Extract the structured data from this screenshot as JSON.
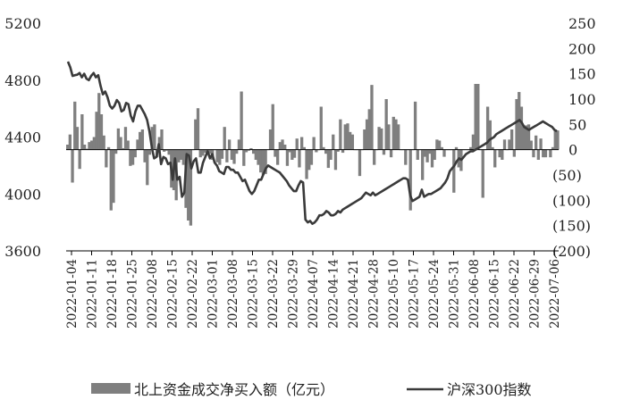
{
  "chart_data": {
    "type": "bar+line",
    "title": "",
    "xlabel": "",
    "ylabel": "",
    "x_tick_labels": [
      "2022-01-04",
      "2022-01-11",
      "2022-01-18",
      "2022-01-25",
      "2022-02-08",
      "2022-02-15",
      "2022-02-22",
      "2022-03-01",
      "2022-03-08",
      "2022-03-15",
      "2022-03-22",
      "2022-03-29",
      "2022-04-07",
      "2022-04-14",
      "2022-04-21",
      "2022-04-28",
      "2022-05-10",
      "2022-05-17",
      "2022-05-24",
      "2022-05-31",
      "2022-06-08",
      "2022-06-15",
      "2022-06-22",
      "2022-06-29",
      "2022-07-06"
    ],
    "y_left": {
      "min": 3600,
      "max": 5200,
      "ticks": [
        "3600",
        "4000",
        "4400",
        "4800",
        "5200"
      ]
    },
    "y_right": {
      "min": -200,
      "max": 250,
      "ticks": [
        "(200)",
        "(150)",
        "(100)",
        "(50)",
        "0",
        "50",
        "100",
        "150",
        "200",
        "250"
      ]
    },
    "grid": false,
    "legend_position": "bottom",
    "series": [
      {
        "name": "北上资金成交净买入额（亿元）",
        "type": "bar",
        "axis": "right",
        "color": "#7f7f7f",
        "values": [
          10,
          30,
          -65,
          95,
          45,
          -38,
          70,
          10,
          2,
          15,
          18,
          25,
          75,
          112,
          70,
          28,
          -35,
          5,
          -120,
          -105,
          -8,
          42,
          25,
          3,
          45,
          18,
          -32,
          -30,
          -15,
          20,
          35,
          40,
          -25,
          -70,
          -10,
          45,
          50,
          -15,
          25,
          40,
          -4,
          -2,
          -10,
          -75,
          -80,
          -100,
          -25,
          -20,
          -30,
          -115,
          -140,
          -150,
          0,
          60,
          82,
          -15,
          -12,
          -6,
          -10,
          -8,
          -20,
          0,
          -25,
          -30,
          -18,
          45,
          -25,
          20,
          -20,
          -28,
          -8,
          20,
          115,
          -32,
          -5,
          -2,
          3,
          -8,
          -20,
          -30,
          -45,
          -50,
          -48,
          0,
          40,
          90,
          -14,
          -30,
          15,
          20,
          10,
          -32,
          -5,
          -20,
          -16,
          22,
          -35,
          25,
          5,
          -58,
          -40,
          -30,
          25,
          -5,
          0,
          85,
          5,
          -8,
          -36,
          -20,
          30,
          -40,
          -4,
          60,
          -6,
          50,
          52,
          35,
          30,
          0,
          0,
          -52,
          0,
          40,
          60,
          80,
          128,
          -30,
          0,
          45,
          42,
          -10,
          100,
          50,
          -15,
          65,
          60,
          50,
          0,
          0,
          -30,
          0,
          -120,
          0,
          95,
          -20,
          0,
          -60,
          -14,
          -25,
          -8,
          -35,
          -20,
          20,
          18,
          5,
          -14,
          0,
          0,
          0,
          -85,
          5,
          -35,
          -42,
          0,
          0,
          0,
          5,
          30,
          130,
          130,
          0,
          -95,
          0,
          85,
          58,
          5,
          -35,
          0,
          -15,
          -20,
          20,
          0,
          20,
          40,
          -14,
          100,
          114,
          85,
          48,
          48,
          50,
          18,
          -15,
          28,
          -20,
          22,
          -15,
          -15,
          0,
          -15,
          5,
          40,
          38
        ]
      },
      {
        "name": "沪深300指数",
        "type": "line",
        "axis": "left",
        "color": "#3a3a3a",
        "values": [
          4930,
          4890,
          4830,
          4835,
          4838,
          4850,
          4820,
          4845,
          4810,
          4800,
          4830,
          4850,
          4820,
          4835,
          4760,
          4700,
          4720,
          4680,
          4620,
          4600,
          4620,
          4660,
          4640,
          4580,
          4590,
          4640,
          4630,
          4550,
          4510,
          4580,
          4620,
          4620,
          4590,
          4560,
          4520,
          4440,
          4330,
          4250,
          4260,
          4350,
          4210,
          4260,
          4250,
          4210,
          4220,
          4100,
          4250,
          4100,
          4120,
          3980,
          4010,
          4280,
          4270,
          4180,
          4230,
          4250,
          4150,
          4150,
          4220,
          4260,
          4300,
          4250,
          4280,
          4220,
          4200,
          4160,
          4150,
          4140,
          4190,
          4190,
          4170,
          4170,
          4150,
          4150,
          4120,
          4090,
          4100,
          4060,
          4020,
          4000,
          4020,
          4060,
          4100,
          4100,
          4140,
          4180,
          4200,
          4190,
          4180,
          4170,
          4160,
          4150,
          4130,
          4110,
          4090,
          4060,
          4040,
          4020,
          4020,
          4060,
          4090,
          4080,
          3820,
          3800,
          3810,
          3790,
          3800,
          3820,
          3850,
          3850,
          3860,
          3880,
          3870,
          3850,
          3850,
          3860,
          3880,
          3870,
          3890,
          3900,
          3910,
          3920,
          3930,
          3940,
          3950,
          3960,
          3970,
          3990,
          4010,
          4000,
          3990,
          4010,
          3990,
          4000,
          4010,
          4020,
          4030,
          4040,
          4050,
          4060,
          4070,
          4080,
          4090,
          4100,
          4110,
          4110,
          4100,
          3990,
          3950,
          3960,
          3970,
          3980,
          4030,
          3980,
          3990,
          4000,
          4000,
          4010,
          4020,
          4030,
          4040,
          4060,
          4080,
          4110,
          4160,
          4180,
          4200,
          4230,
          4250,
          4240,
          4260,
          4280,
          4290,
          4300,
          4300,
          4310,
          4320,
          4330,
          4340,
          4350,
          4360,
          4380,
          4390,
          4400,
          4420,
          4430,
          4440,
          4450,
          4460,
          4470,
          4480,
          4490,
          4500,
          4510,
          4520,
          4500,
          4470,
          4460,
          4450,
          4460,
          4470,
          4480,
          4490,
          4500,
          4510,
          4500,
          4490,
          4480,
          4470,
          4450,
          4440
        ]
      }
    ]
  }
}
